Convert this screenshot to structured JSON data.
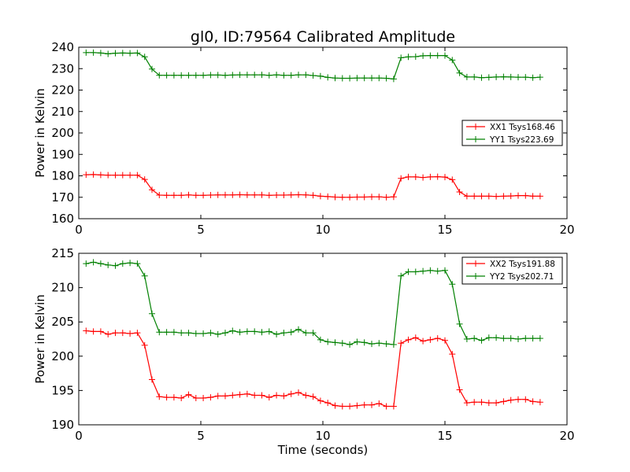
{
  "figure": {
    "title": "gl0, ID:79564 Calibrated Amplitude",
    "background": "#ffffff"
  },
  "chart_data": [
    {
      "type": "line",
      "title": "gl0, ID:79564 Calibrated Amplitude",
      "xlabel": "",
      "ylabel": "Power in Kelvin",
      "xlim": [
        0,
        20
      ],
      "ylim": [
        160,
        240
      ],
      "xticks": [
        0,
        5,
        10,
        15,
        20
      ],
      "yticks": [
        160,
        170,
        180,
        190,
        200,
        210,
        220,
        230,
        240
      ],
      "grid": false,
      "legend_position": "center-right",
      "x": [
        0.3,
        0.6,
        0.9,
        1.2,
        1.5,
        1.8,
        2.1,
        2.4,
        2.7,
        3.0,
        3.3,
        3.6,
        3.9,
        4.2,
        4.5,
        4.8,
        5.1,
        5.4,
        5.7,
        6.0,
        6.3,
        6.6,
        6.9,
        7.2,
        7.5,
        7.8,
        8.1,
        8.4,
        8.7,
        9.0,
        9.3,
        9.6,
        9.9,
        10.2,
        10.5,
        10.8,
        11.1,
        11.4,
        11.7,
        12.0,
        12.3,
        12.6,
        12.9,
        13.2,
        13.5,
        13.8,
        14.1,
        14.4,
        14.7,
        15.0,
        15.3,
        15.6,
        15.9,
        16.2,
        16.5,
        16.8,
        17.1,
        17.4,
        17.7,
        18.0,
        18.3,
        18.6,
        18.9
      ],
      "series": [
        {
          "name": "XX1 Tsys168.46",
          "color": "#ff0000",
          "values": [
            180.5,
            180.6,
            180.4,
            180.3,
            180.3,
            180.3,
            180.3,
            180.3,
            178.3,
            173.5,
            171.0,
            170.9,
            170.9,
            170.9,
            171.1,
            170.9,
            170.9,
            171.0,
            171.1,
            171.1,
            171.1,
            171.2,
            171.1,
            171.1,
            171.1,
            170.9,
            171.0,
            171.0,
            171.1,
            171.2,
            171.1,
            170.9,
            170.5,
            170.3,
            170.1,
            170.0,
            170.0,
            170.1,
            170.1,
            170.2,
            170.2,
            170.0,
            170.2,
            178.8,
            179.5,
            179.5,
            179.2,
            179.5,
            179.6,
            179.4,
            178.2,
            172.5,
            170.5,
            170.5,
            170.5,
            170.5,
            170.4,
            170.5,
            170.6,
            170.8,
            170.8,
            170.5,
            170.5
          ]
        },
        {
          "name": "YY1 Tsys223.69",
          "color": "#008000",
          "values": [
            237.5,
            237.5,
            237.3,
            236.9,
            237.2,
            237.3,
            237.2,
            237.3,
            235.5,
            229.8,
            226.9,
            226.9,
            226.9,
            226.9,
            226.9,
            226.9,
            226.9,
            227.0,
            227.0,
            226.9,
            227.0,
            227.1,
            227.1,
            227.1,
            227.1,
            226.9,
            227.1,
            226.9,
            226.9,
            227.1,
            227.1,
            226.8,
            226.5,
            225.9,
            225.6,
            225.5,
            225.5,
            225.6,
            225.6,
            225.6,
            225.6,
            225.5,
            225.2,
            235.1,
            235.5,
            235.6,
            236.0,
            236.1,
            236.1,
            236.1,
            234.0,
            228.0,
            226.1,
            226.1,
            225.8,
            225.9,
            226.1,
            226.2,
            226.1,
            226.0,
            226.0,
            225.8,
            226.0
          ]
        }
      ]
    },
    {
      "type": "line",
      "title": "",
      "xlabel": "Time (seconds)",
      "ylabel": "Power in Kelvin",
      "xlim": [
        0,
        20
      ],
      "ylim": [
        190,
        215
      ],
      "xticks": [
        0,
        5,
        10,
        15,
        20
      ],
      "yticks": [
        190,
        195,
        200,
        205,
        210,
        215
      ],
      "grid": false,
      "legend_position": "top-right",
      "x": [
        0.3,
        0.6,
        0.9,
        1.2,
        1.5,
        1.8,
        2.1,
        2.4,
        2.7,
        3.0,
        3.3,
        3.6,
        3.9,
        4.2,
        4.5,
        4.8,
        5.1,
        5.4,
        5.7,
        6.0,
        6.3,
        6.6,
        6.9,
        7.2,
        7.5,
        7.8,
        8.1,
        8.4,
        8.7,
        9.0,
        9.3,
        9.6,
        9.9,
        10.2,
        10.5,
        10.8,
        11.1,
        11.4,
        11.7,
        12.0,
        12.3,
        12.6,
        12.9,
        13.2,
        13.5,
        13.8,
        14.1,
        14.4,
        14.7,
        15.0,
        15.3,
        15.6,
        15.9,
        16.2,
        16.5,
        16.8,
        17.1,
        17.4,
        17.7,
        18.0,
        18.3,
        18.6,
        18.9
      ],
      "series": [
        {
          "name": "XX2 Tsys191.88",
          "color": "#ff0000",
          "values": [
            203.7,
            203.6,
            203.6,
            203.2,
            203.4,
            203.4,
            203.3,
            203.4,
            201.6,
            196.6,
            194.1,
            194.0,
            194.0,
            193.9,
            194.4,
            193.9,
            193.9,
            194.0,
            194.2,
            194.2,
            194.3,
            194.4,
            194.5,
            194.3,
            194.3,
            194.0,
            194.3,
            194.2,
            194.5,
            194.7,
            194.3,
            194.1,
            193.5,
            193.2,
            192.8,
            192.7,
            192.7,
            192.8,
            192.9,
            192.9,
            193.1,
            192.7,
            192.7,
            201.9,
            202.4,
            202.7,
            202.2,
            202.4,
            202.6,
            202.3,
            200.3,
            195.1,
            193.2,
            193.3,
            193.3,
            193.2,
            193.2,
            193.4,
            193.6,
            193.7,
            193.7,
            193.4,
            193.3
          ]
        },
        {
          "name": "YY2 Tsys202.71",
          "color": "#008000",
          "values": [
            213.5,
            213.7,
            213.5,
            213.3,
            213.2,
            213.5,
            213.6,
            213.5,
            211.7,
            206.2,
            203.5,
            203.5,
            203.5,
            203.4,
            203.4,
            203.3,
            203.3,
            203.4,
            203.2,
            203.4,
            203.7,
            203.5,
            203.6,
            203.6,
            203.5,
            203.6,
            203.2,
            203.4,
            203.5,
            203.9,
            203.4,
            203.4,
            202.4,
            202.1,
            202.0,
            201.9,
            201.7,
            202.1,
            202.0,
            201.8,
            201.9,
            201.8,
            201.7,
            211.7,
            212.3,
            212.3,
            212.4,
            212.5,
            212.4,
            212.5,
            210.5,
            204.7,
            202.5,
            202.6,
            202.3,
            202.7,
            202.7,
            202.6,
            202.6,
            202.5,
            202.6,
            202.6,
            202.6
          ]
        }
      ]
    }
  ]
}
